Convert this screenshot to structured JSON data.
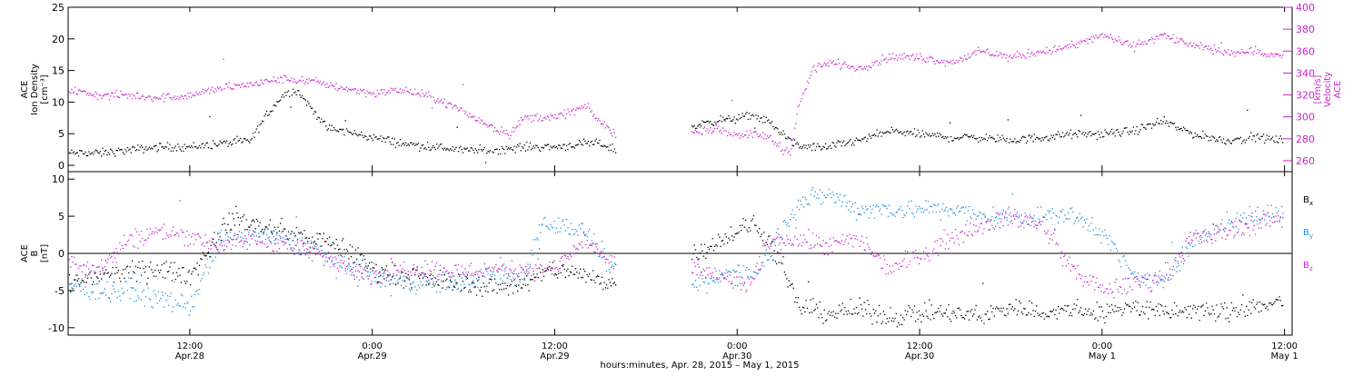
{
  "figure": {
    "footer_label": "hours:minutes, Apr. 28, 2015 – May  1, 2015"
  },
  "colors": {
    "black": "#000000",
    "magenta": "#cc22cc",
    "blue": "#1e8fe0",
    "axis": "#000000",
    "zero_line": "#000000"
  },
  "chart_data": [
    {
      "type": "scatter",
      "title": "",
      "ylabel_lines": [
        "ACE",
        "Ion Density",
        "[cm⁻³]"
      ],
      "y2label_lines": [
        "ACE",
        "Velocity",
        "[km/s]"
      ],
      "ylim": [
        -1,
        25
      ],
      "yticks": [
        0,
        5,
        10,
        15,
        20,
        25
      ],
      "y2lim": [
        250,
        400
      ],
      "y2ticks": [
        260,
        280,
        300,
        320,
        340,
        360,
        380,
        400
      ],
      "x_unit": "hours since Apr. 28, 2015 00:00",
      "xlim": [
        4,
        84.5
      ],
      "gaps": [
        [
          40,
          45
        ]
      ],
      "series": [
        {
          "name": "",
          "axis": "left",
          "color_key": "black",
          "x": [
            4,
            6,
            8,
            10,
            12,
            14,
            16,
            17,
            18,
            19,
            20,
            21,
            22,
            24,
            26,
            28,
            30,
            32,
            34,
            36,
            38,
            39,
            40,
            45,
            46,
            48,
            49,
            50,
            52,
            54,
            56,
            58,
            60,
            62,
            64,
            66,
            68,
            70,
            72,
            74,
            76,
            78,
            80,
            82,
            84
          ],
          "values": [
            2,
            2,
            2.5,
            3,
            3,
            3.5,
            4,
            8,
            11,
            12,
            9,
            6,
            5.5,
            4.5,
            3.5,
            3,
            2.5,
            2.5,
            3,
            3,
            3.5,
            3.5,
            2.5,
            6,
            7,
            7.5,
            8,
            7,
            3,
            3,
            4,
            5.5,
            5,
            4.5,
            4.5,
            4,
            4.5,
            5,
            5,
            5.5,
            7,
            5,
            4,
            4.5,
            4
          ]
        },
        {
          "name": "",
          "axis": "right",
          "color_key": "magenta",
          "x": [
            4,
            6,
            8,
            10,
            12,
            14,
            16,
            18,
            20,
            22,
            24,
            26,
            28,
            30,
            32,
            33,
            34,
            36,
            37,
            38,
            39,
            40,
            45,
            46,
            48,
            50,
            51,
            51.5,
            52,
            53,
            54,
            56,
            58,
            60,
            62,
            64,
            66,
            68,
            70,
            72,
            74,
            76,
            78,
            80,
            82,
            84
          ],
          "values": [
            325,
            320,
            320,
            318,
            320,
            327,
            330,
            335,
            333,
            327,
            322,
            325,
            318,
            305,
            290,
            285,
            300,
            300,
            305,
            310,
            295,
            285,
            285,
            290,
            285,
            283,
            270,
            270,
            310,
            345,
            350,
            345,
            355,
            355,
            350,
            360,
            355,
            360,
            365,
            375,
            365,
            375,
            365,
            360,
            360,
            355
          ]
        }
      ]
    },
    {
      "type": "scatter",
      "title": "",
      "ylabel_lines": [
        "ACE",
        "B",
        "[nT]"
      ],
      "ylim": [
        -11,
        11
      ],
      "yticks": [
        -10,
        -5,
        0,
        5,
        10
      ],
      "zero_line": true,
      "x_unit": "hours since Apr. 28, 2015 00:00",
      "xlim": [
        4,
        84.5
      ],
      "gaps": [
        [
          40,
          45
        ]
      ],
      "xticks": [
        {
          "x": 12,
          "time": "12:00",
          "date": "Apr.28"
        },
        {
          "x": 24,
          "time": "0:00",
          "date": "Apr.29"
        },
        {
          "x": 36,
          "time": "12:00",
          "date": "Apr.29"
        },
        {
          "x": 48,
          "time": "0:00",
          "date": "Apr.30"
        },
        {
          "x": 60,
          "time": "12:00",
          "date": "Apr.30"
        },
        {
          "x": 72,
          "time": "0:00",
          "date": "May 1"
        },
        {
          "x": 84,
          "time": "12:00",
          "date": "May 1"
        }
      ],
      "series": [
        {
          "name": "Bx",
          "label_main": "B",
          "label_sub": "x",
          "color_key": "black",
          "x": [
            4,
            6,
            8,
            10,
            12,
            14,
            15,
            16,
            18,
            20,
            22,
            24,
            26,
            28,
            30,
            32,
            34,
            36,
            38,
            40,
            45,
            46,
            48,
            49,
            50,
            52,
            54,
            56,
            58,
            60,
            62,
            64,
            66,
            68,
            70,
            72,
            74,
            76,
            78,
            80,
            82,
            84
          ],
          "values": [
            -4,
            -3,
            -2.5,
            -2,
            -3,
            3,
            5,
            4,
            3,
            2,
            1,
            -2,
            -3,
            -3.5,
            -4,
            -4.5,
            -4,
            -2,
            -3,
            -4,
            0,
            1,
            3,
            4,
            2,
            -7,
            -8,
            -7.5,
            -8.5,
            -8,
            -8,
            -8.5,
            -7,
            -8,
            -7.5,
            -8,
            -7,
            -8,
            -7.5,
            -8,
            -7,
            -6.5
          ]
        },
        {
          "name": "By",
          "label_main": "B",
          "label_sub": "y",
          "color_key": "blue",
          "x": [
            4,
            6,
            8,
            10,
            12,
            14,
            16,
            18,
            20,
            22,
            24,
            26,
            28,
            30,
            32,
            34,
            35,
            36,
            38,
            40,
            45,
            46,
            48,
            49,
            50,
            52,
            54,
            56,
            58,
            60,
            62,
            64,
            66,
            68,
            70,
            72,
            74,
            76,
            78,
            80,
            82,
            84
          ],
          "values": [
            -4,
            -5,
            -5,
            -6,
            -7,
            2,
            2.5,
            2,
            1,
            -2,
            -3,
            -4,
            -4,
            -3.5,
            -3,
            -3,
            4,
            4,
            3,
            -3,
            -4,
            -4,
            -2,
            -3,
            0,
            7,
            8,
            6,
            6,
            6,
            6,
            5,
            5,
            5,
            5,
            3,
            -3,
            -4,
            2,
            4,
            5,
            6
          ]
        },
        {
          "name": "Bz",
          "label_main": "B",
          "label_sub": "z",
          "color_key": "magenta",
          "x": [
            4,
            6,
            8,
            10,
            12,
            14,
            16,
            18,
            20,
            22,
            24,
            26,
            28,
            30,
            32,
            34,
            36,
            38,
            40,
            45,
            46,
            48,
            49,
            50,
            52,
            54,
            56,
            58,
            60,
            62,
            64,
            66,
            68,
            70,
            72,
            74,
            76,
            78,
            80,
            82,
            84
          ],
          "values": [
            -1,
            -2,
            2,
            3,
            2.5,
            1,
            2,
            1.5,
            0,
            -1,
            -3,
            -2,
            -2,
            -2.5,
            -2,
            -2,
            -2,
            2,
            -2,
            -2,
            -2.5,
            -4,
            -4,
            2,
            2,
            1,
            2,
            -2,
            0,
            2,
            4,
            5,
            4,
            -2,
            -5,
            -4,
            -3,
            2,
            3,
            4,
            5
          ]
        }
      ]
    }
  ]
}
